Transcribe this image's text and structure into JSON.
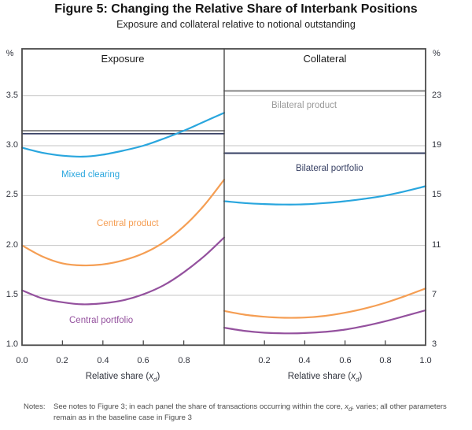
{
  "figure": {
    "title": "Figure 5: Changing the Relative Share of Interbank Positions",
    "subtitle": "Exposure and collateral relative to notional outstanding"
  },
  "chart_data": {
    "type": "line",
    "x_axis_title": {
      "pre": "Relative share (",
      "var": "x",
      "sub": "d",
      "post": ")"
    },
    "left_axis": {
      "unit": "%",
      "ticks": [
        "3.5",
        "3.0",
        "2.5",
        "2.0",
        "1.5",
        "1.0"
      ],
      "range": [
        1.0,
        3.971
      ]
    },
    "right_axis": {
      "unit": "%",
      "ticks": [
        "23",
        "19",
        "15",
        "11",
        "7",
        "3"
      ],
      "range": [
        3,
        26.77
      ]
    },
    "gridlines_left_axis_values": [
      3.5,
      3.0,
      2.5,
      2.0,
      1.5
    ],
    "colors": {
      "blue": "#29a6de",
      "orange": "#f59e53",
      "purple": "#94519e",
      "navy": "#363f63",
      "gray_line": "#8c8c8c",
      "gray_label": "#9b9b9b",
      "gridline": "#c6c6c6",
      "frame": "#4a4a4a"
    },
    "panels": [
      {
        "title": "Exposure",
        "y_axis": "left",
        "x_tick_labels": [
          "0.0",
          "0.2",
          "0.4",
          "0.6",
          "0.8"
        ],
        "x_ticks_at": [
          0.2,
          0.4,
          0.6,
          0.8
        ],
        "x": [
          0,
          0.1,
          0.2,
          0.3,
          0.4,
          0.5,
          0.6,
          0.7,
          0.8,
          0.9,
          1.0
        ],
        "series": [
          {
            "name": "Bilateral product",
            "color": "#8c8c8c",
            "stroke_width": 2.1,
            "values": [
              3.15,
              3.15,
              3.15,
              3.15,
              3.15,
              3.15,
              3.15,
              3.15,
              3.15,
              3.15,
              3.15
            ]
          },
          {
            "name": "Bilateral portfolio",
            "color": "#363f63",
            "stroke_width": 1.6,
            "values": [
              3.12,
              3.12,
              3.12,
              3.12,
              3.12,
              3.12,
              3.12,
              3.12,
              3.12,
              3.12,
              3.12
            ]
          },
          {
            "name": "Mixed clearing",
            "color": "#29a6de",
            "stroke_width": 2.2,
            "values": [
              2.98,
              2.93,
              2.9,
              2.89,
              2.91,
              2.95,
              3.0,
              3.07,
              3.15,
              3.24,
              3.33
            ]
          },
          {
            "name": "Central product",
            "color": "#f59e53",
            "stroke_width": 2.2,
            "values": [
              2.0,
              1.89,
              1.82,
              1.8,
              1.81,
              1.85,
              1.92,
              2.03,
              2.19,
              2.4,
              2.66
            ]
          },
          {
            "name": "Central portfolio",
            "color": "#94519e",
            "stroke_width": 2.2,
            "values": [
              1.55,
              1.47,
              1.43,
              1.41,
              1.42,
              1.45,
              1.51,
              1.6,
              1.73,
              1.89,
              2.08
            ]
          }
        ]
      },
      {
        "title": "Collateral",
        "y_axis": "right",
        "x_tick_labels": [
          "0.2",
          "0.4",
          "0.6",
          "0.8",
          "1.0"
        ],
        "x_ticks_at": [
          0.2,
          0.4,
          0.6,
          0.8
        ],
        "x": [
          0,
          0.1,
          0.2,
          0.3,
          0.4,
          0.5,
          0.6,
          0.7,
          0.8,
          0.9,
          1.0
        ],
        "series": [
          {
            "name": "Bilateral product",
            "color": "#8c8c8c",
            "stroke_width": 2.1,
            "values": [
              23.4,
              23.4,
              23.4,
              23.4,
              23.4,
              23.4,
              23.4,
              23.4,
              23.4,
              23.4,
              23.4
            ]
          },
          {
            "name": "Bilateral portfolio",
            "color": "#363f63",
            "stroke_width": 2.0,
            "values": [
              18.4,
              18.4,
              18.4,
              18.4,
              18.4,
              18.4,
              18.4,
              18.4,
              18.4,
              18.4,
              18.4
            ]
          },
          {
            "name": "Mixed clearing",
            "color": "#29a6de",
            "stroke_width": 2.2,
            "values": [
              14.55,
              14.4,
              14.32,
              14.28,
              14.3,
              14.4,
              14.55,
              14.75,
              15.0,
              15.35,
              15.75
            ]
          },
          {
            "name": "Central product",
            "color": "#f59e53",
            "stroke_width": 2.2,
            "values": [
              5.75,
              5.45,
              5.28,
              5.2,
              5.22,
              5.35,
              5.6,
              5.95,
              6.4,
              6.95,
              7.55
            ]
          },
          {
            "name": "Central portfolio",
            "color": "#94519e",
            "stroke_width": 2.2,
            "values": [
              4.4,
              4.15,
              4.0,
              3.95,
              3.97,
              4.07,
              4.25,
              4.55,
              4.92,
              5.35,
              5.8
            ]
          }
        ]
      }
    ]
  },
  "notes": {
    "label": "Notes:",
    "pre": "See notes to Figure 3; in each panel the share of transactions occurring within the core, ",
    "var": "x",
    "sub": "d",
    "post": ", varies; all other parameters remain as in the baseline case in Figure 3"
  }
}
